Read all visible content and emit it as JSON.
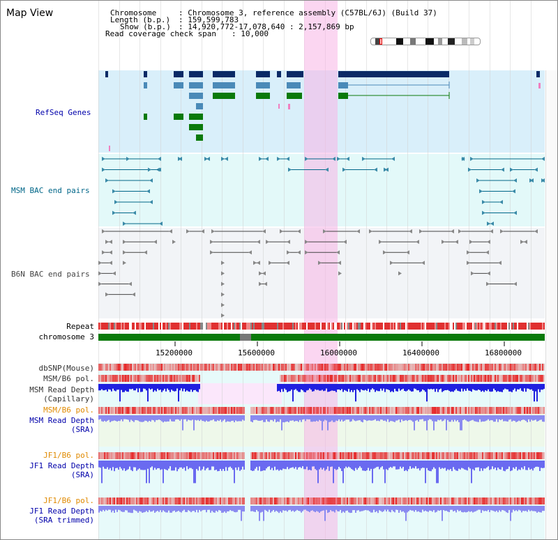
{
  "view": {
    "title": "Map View"
  },
  "info": {
    "chromosome_key": "Chromosome",
    "chromosome_val": ": Chromosome 3, reference assembly (C57BL/6J) (Build 37)",
    "length_key": "Length (b.p.)",
    "length_val": ": 159,599,783",
    "show_key": "Show (b.p.)",
    "show_val": ": 14,920,772-17,078,640 : 2,157,869 bp",
    "read_key": "Read coverage check span",
    "read_val": ": 10,000"
  },
  "tracks": {
    "refseq": {
      "label": "RefSeq Genes",
      "color": "#0000aa"
    },
    "msm_bac": {
      "label": "MSM BAC end pairs",
      "color": "#006688"
    },
    "b6n_bac": {
      "label": "B6N BAC end pairs",
      "color": "#444444"
    },
    "repeat": {
      "label": "Repeat"
    },
    "chrom": {
      "label": "chromosome 3"
    },
    "dbsnp": {
      "label": "dbSNP(Mouse)"
    },
    "msm_b6_pol_1": {
      "label": "MSM/B6 pol."
    },
    "msm_depth_cap": {
      "label": "MSM Read Depth",
      "label2": "(Capillary)"
    },
    "msm_b6_pol_2": {
      "label": "MSM/B6 pol."
    },
    "msm_depth_sra": {
      "label": "MSM Read Depth",
      "label2": "(SRA)"
    },
    "jf1_b6_pol_1": {
      "label": "JF1/B6 pol."
    },
    "jf1_depth_sra": {
      "label": "JF1 Read Depth",
      "label2": "(SRA)"
    },
    "jf1_b6_pol_2": {
      "label": "JF1/B6 pol."
    },
    "jf1_depth_trim": {
      "label": "JF1 Read Depth",
      "label2": "(SRA trimmed)"
    }
  },
  "axis": {
    "ticks": [
      "15200000",
      "15600000",
      "16000000",
      "16400000",
      "16800000"
    ]
  },
  "colors": {
    "highlight": "#f8b4e6",
    "gene_dark": "#0a2a66",
    "gene_mid": "#4a8ab8",
    "gene_green": "#0a7a0a",
    "repeat_red": "#e03030",
    "chrom_green": "#0a7a0a",
    "depth_blue": "#2020e0",
    "label_orange": "#e08a00"
  }
}
